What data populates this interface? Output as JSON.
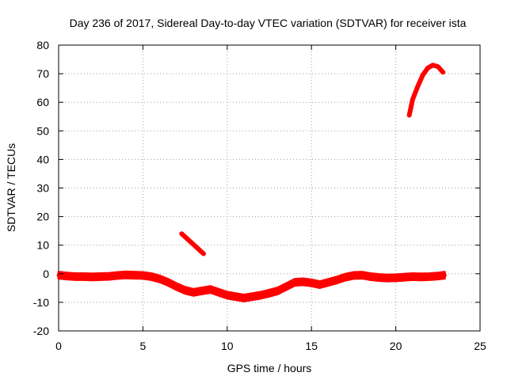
{
  "chart_data": {
    "type": "line",
    "title": "Day 236 of 2017, Sidereal Day-to-day VTEC variation (SDTVAR) for receiver ista",
    "xlabel": "GPS time / hours",
    "ylabel": "SDTVAR / TECUs",
    "xlim": [
      0,
      25
    ],
    "ylim": [
      -20,
      80
    ],
    "xticks": [
      0,
      5,
      10,
      15,
      20,
      25
    ],
    "yticks": [
      -20,
      -10,
      0,
      10,
      20,
      30,
      40,
      50,
      60,
      70,
      80
    ],
    "grid": true,
    "series": [
      {
        "name": "main-band",
        "color": "#ff0000",
        "band_half_width": 1.1,
        "x": [
          0,
          0.5,
          1,
          1.5,
          2,
          2.5,
          3,
          3.5,
          4,
          4.5,
          5,
          5.5,
          6,
          6.5,
          7,
          7.5,
          8,
          8.5,
          9,
          9.5,
          10,
          10.5,
          11,
          11.5,
          12,
          12.5,
          13,
          13.5,
          14,
          14.5,
          15,
          15.5,
          16,
          16.5,
          17,
          17.5,
          18,
          18.5,
          19,
          19.5,
          20,
          20.5,
          21,
          21.5,
          22,
          22.5,
          22.9
        ],
        "y": [
          -0.5,
          -0.8,
          -1.0,
          -1.0,
          -1.1,
          -1.0,
          -0.9,
          -0.6,
          -0.4,
          -0.5,
          -0.6,
          -1.0,
          -1.8,
          -3.0,
          -4.5,
          -5.8,
          -6.5,
          -6.0,
          -5.5,
          -6.5,
          -7.5,
          -8.0,
          -8.5,
          -8.0,
          -7.5,
          -6.8,
          -6.0,
          -4.5,
          -3.0,
          -2.8,
          -3.2,
          -3.8,
          -3.0,
          -2.2,
          -1.2,
          -0.6,
          -0.5,
          -1.0,
          -1.3,
          -1.5,
          -1.4,
          -1.2,
          -1.0,
          -1.1,
          -1.0,
          -0.8,
          -0.5
        ]
      },
      {
        "name": "segment-b",
        "color": "#ff0000",
        "x": [
          7.3,
          8.6
        ],
        "y": [
          14.0,
          7.0
        ]
      },
      {
        "name": "segment-c",
        "color": "#ff0000",
        "x": [
          20.8,
          21.0,
          21.3,
          21.6,
          21.9,
          22.2,
          22.5,
          22.8
        ],
        "y": [
          55.5,
          61.0,
          65.5,
          69.5,
          72.0,
          73.0,
          72.5,
          70.5
        ]
      }
    ]
  }
}
